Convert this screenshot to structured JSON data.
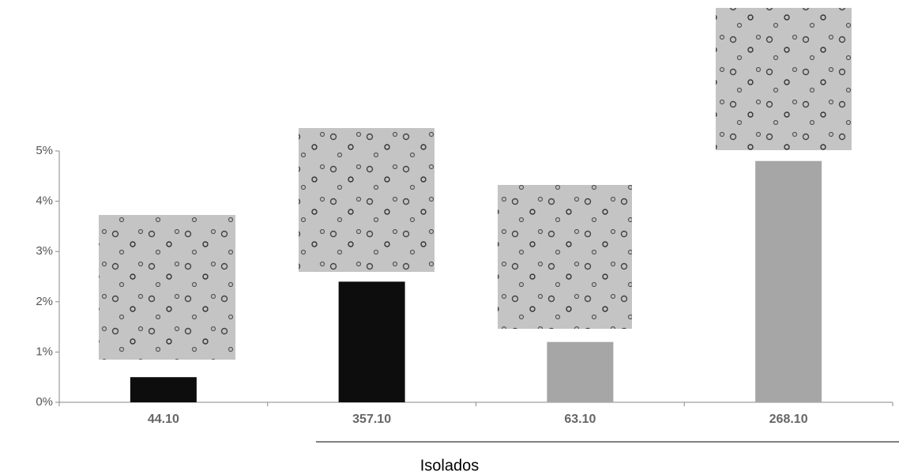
{
  "chart_data": {
    "type": "bar",
    "x_label": "Isolados",
    "categories": [
      "44.10",
      "357.10",
      "63.10",
      "268.10"
    ],
    "values": [
      0.5,
      2.4,
      1.2,
      4.8
    ],
    "colors": [
      "#0d0d0d",
      "#0d0d0d",
      "#a6a6a6",
      "#a6a6a6"
    ],
    "ylim": [
      0,
      5
    ],
    "yticks": [
      {
        "value": 0,
        "label": "0%"
      },
      {
        "value": 1,
        "label": "1%"
      },
      {
        "value": 2,
        "label": "2%"
      },
      {
        "value": 3,
        "label": "3%"
      },
      {
        "value": 4,
        "label": "4%"
      },
      {
        "value": 5,
        "label": "5%"
      }
    ]
  }
}
